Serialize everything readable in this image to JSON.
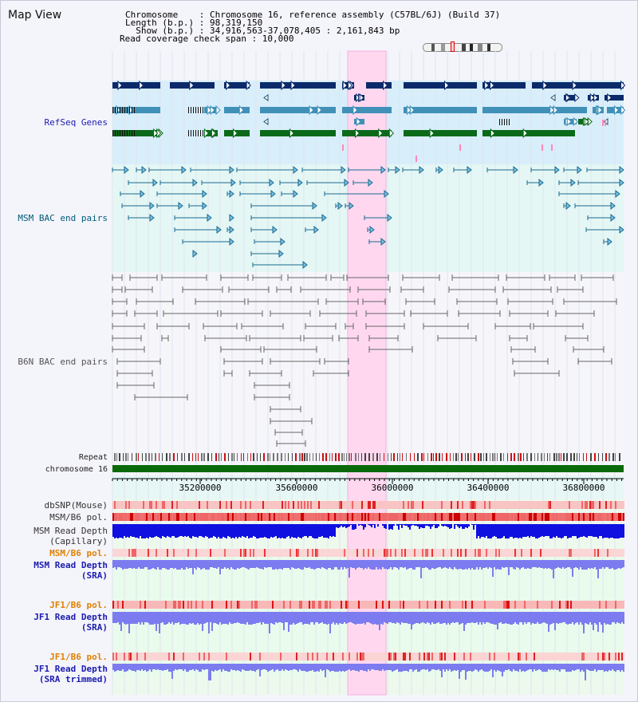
{
  "title": "Map View",
  "header": {
    "chromosome_line": "Chromosome    : Chromosome 16, reference assembly (C57BL/6J) (Build 37)",
    "length_line": "Length (b.p.) : 98,319,150",
    "show_line": "  Show (b.p.) : 34,916,563-37,078,405 : 2,161,843 bp",
    "span_line": "Read coverage check span : 10,000"
  },
  "tracks": {
    "refseq": "RefSeq Genes",
    "msm_bac": "MSM BAC end pairs",
    "b6n_bac": "B6N BAC end pairs",
    "repeat": "Repeat",
    "chromosome": "chromosome 16",
    "dbsnp": "dbSNP(Mouse)",
    "msm_b6_pol_1": "MSM/B6 pol.",
    "msm_depth_cap": "MSM Read Depth\n(Capillary)",
    "msm_b6_pol_2": "MSM/B6 pol.",
    "msm_depth_sra": "MSM Read Depth\n(SRA)",
    "jf1_b6_pol_1": "JF1/B6 pol.",
    "jf1_depth_sra": "JF1 Read Depth\n(SRA)",
    "jf1_b6_pol_2": "JF1/B6 pol.",
    "jf1_depth_trim": "JF1 Read Depth\n(SRA trimmed)"
  },
  "axis": {
    "ticks": [
      "35200000",
      "35600000",
      "36000000",
      "36400000",
      "36800000"
    ]
  },
  "colors": {
    "label_blue": "#1c1cb0",
    "label_teal": "#005b78",
    "label_gray": "#333333",
    "label_orange": "#e08000",
    "highlight": "#ffd8f0",
    "refseq_bg": "#d8eefb",
    "gene_navy": "#0a2a6a",
    "gene_steel": "#4090b8",
    "gene_green": "#0a6a1a",
    "msm_bac": "#1a6a90",
    "b6n_bac": "#666666",
    "depth_blue": "#1010e0",
    "depth_light": "#7c7cf0"
  }
}
